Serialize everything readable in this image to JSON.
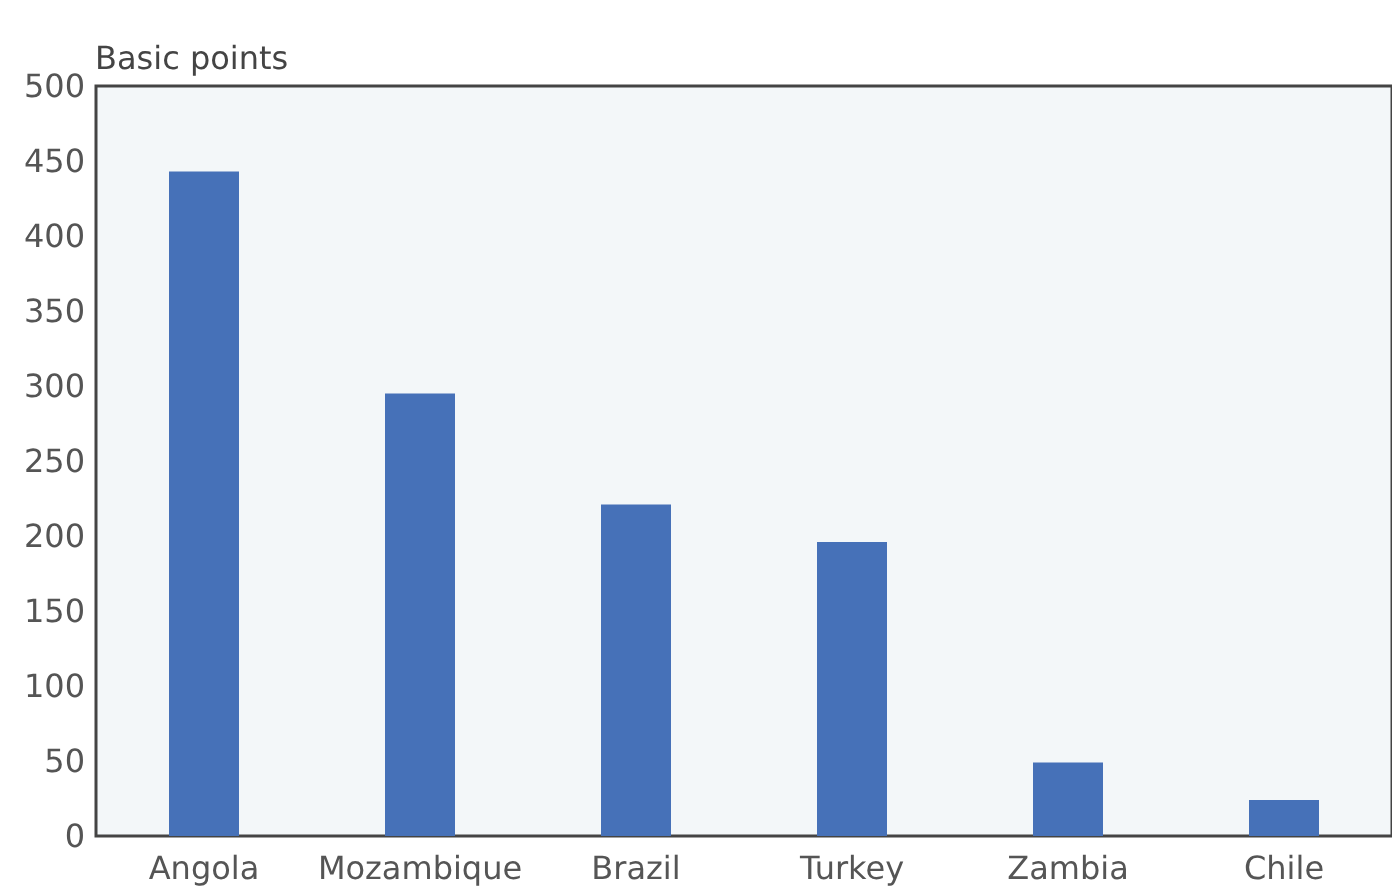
{
  "chart_data": {
    "type": "bar",
    "ylabel": "Basic points",
    "categories": [
      "Angola",
      "Mozambique",
      "Brazil",
      "Turkey",
      "Zambia",
      "Chile"
    ],
    "values": [
      443,
      295,
      221,
      196,
      49,
      24
    ],
    "color": "#4671b8",
    "ylim": [
      0,
      500
    ],
    "yticks": [
      0,
      50,
      100,
      150,
      200,
      250,
      300,
      350,
      400,
      450,
      500
    ],
    "grid": false
  }
}
